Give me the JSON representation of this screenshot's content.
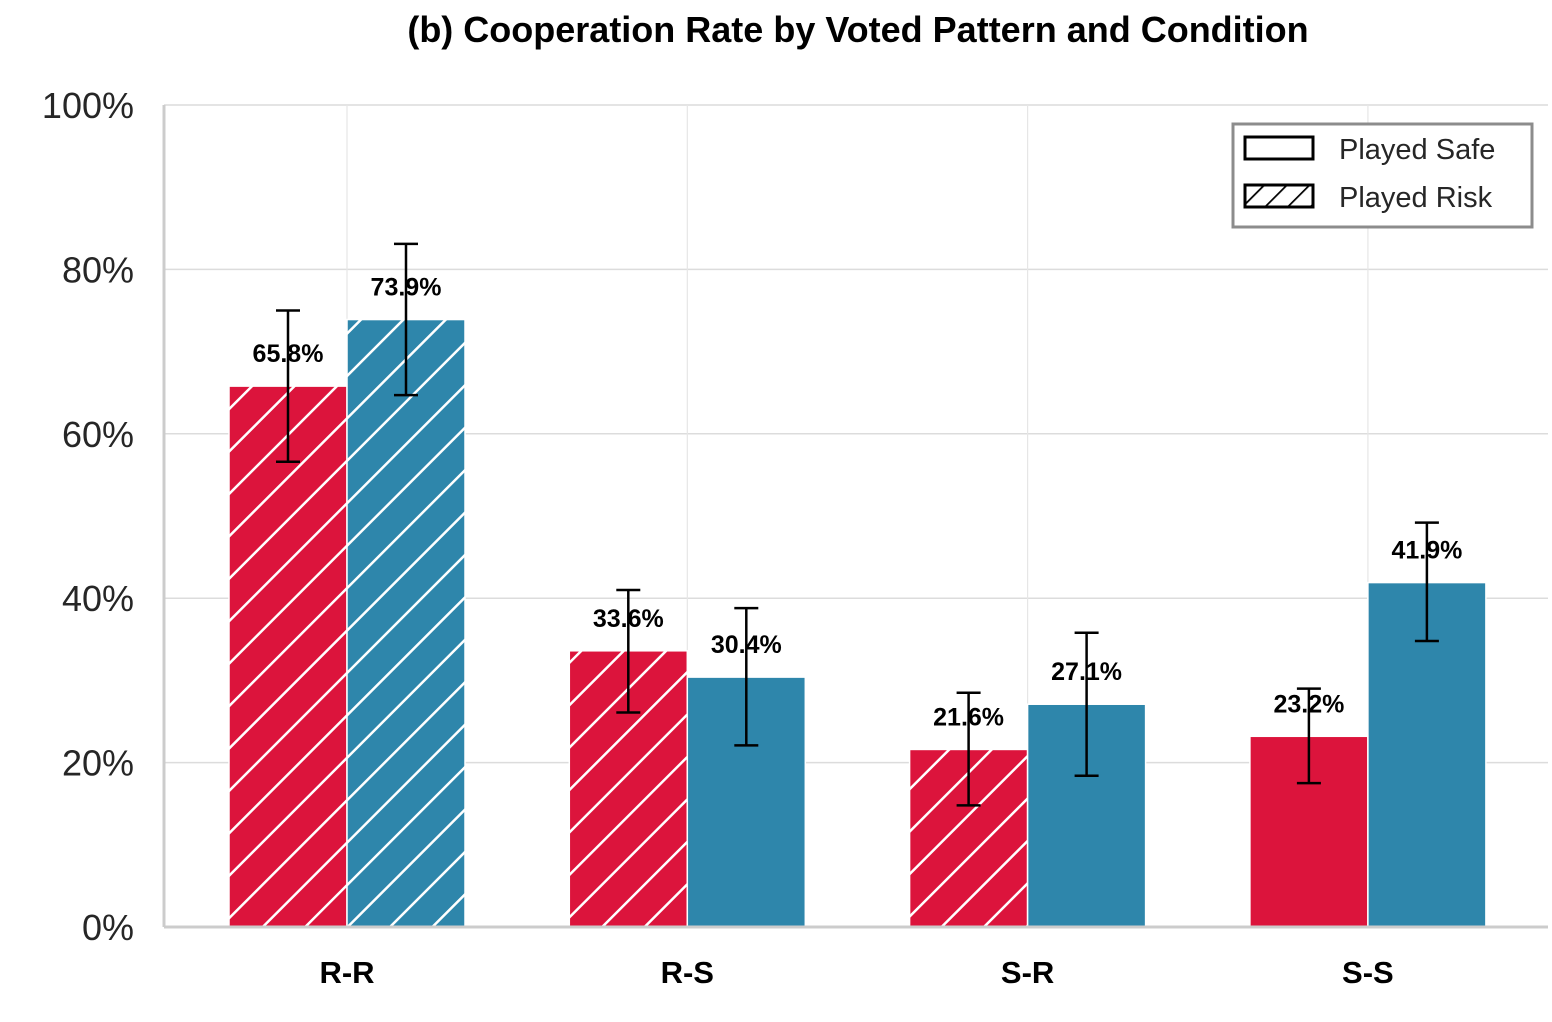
{
  "chart_data": {
    "type": "bar",
    "title": "(b) Cooperation Rate by Voted Pattern and Condition",
    "xlabel": "",
    "ylabel": "",
    "categories": [
      "R-R",
      "R-S",
      "S-R",
      "S-S"
    ],
    "ylim": [
      0,
      100
    ],
    "yticks": [
      "0%",
      "20%",
      "40%",
      "60%",
      "80%",
      "100%"
    ],
    "grid": true,
    "legend_position": "top-right",
    "legend": [
      {
        "label": "Played Safe",
        "pattern": "solid"
      },
      {
        "label": "Played Risk",
        "pattern": "hatched"
      }
    ],
    "series": [
      {
        "color": "#DC143C",
        "values": [
          65.8,
          33.6,
          21.6,
          23.2
        ],
        "labels": [
          "65.8%",
          "33.6%",
          "21.6%",
          "23.2%"
        ],
        "err_low": [
          56.6,
          26.1,
          14.8,
          17.5
        ],
        "err_high": [
          75.0,
          41.0,
          28.5,
          29.0
        ],
        "hatched": [
          true,
          true,
          true,
          false
        ]
      },
      {
        "color": "#2E86AB",
        "values": [
          73.9,
          30.4,
          27.1,
          41.9
        ],
        "labels": [
          "73.9%",
          "30.4%",
          "27.1%",
          "41.9%"
        ],
        "err_low": [
          64.7,
          22.1,
          18.4,
          34.8
        ],
        "err_high": [
          83.1,
          38.8,
          35.8,
          49.2
        ],
        "hatched": [
          true,
          false,
          false,
          false
        ]
      }
    ]
  }
}
